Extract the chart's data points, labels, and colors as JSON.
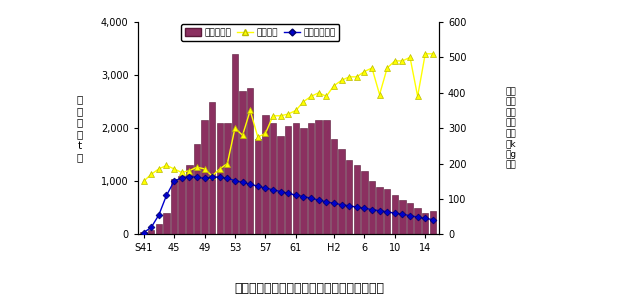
{
  "title": "出雲地域における養殖ワカメ生産量等の推移",
  "bar_color": "#8B3060",
  "bar_edge_color": "#5a1a3a",
  "line1_color": "#FFFF00",
  "line2_color": "#0000CC",
  "ylim_left": [
    0,
    4000
  ],
  "ylim_right": [
    0,
    600
  ],
  "production": [
    50,
    80,
    200,
    400,
    1050,
    1100,
    1300,
    1700,
    2150,
    2500,
    2100,
    2100,
    3400,
    2700,
    2750,
    1800,
    2250,
    2100,
    1850,
    2050,
    2100,
    2000,
    2100,
    2150,
    2150,
    1800,
    1600,
    1400,
    1300,
    1200,
    1000,
    900,
    850,
    750,
    650,
    600,
    500,
    400,
    450
  ],
  "unit_price": [
    150,
    170,
    185,
    195,
    185,
    175,
    180,
    190,
    185,
    165,
    185,
    200,
    300,
    280,
    350,
    275,
    285,
    335,
    335,
    340,
    350,
    375,
    390,
    400,
    390,
    420,
    435,
    445,
    445,
    460,
    470,
    395,
    470,
    490,
    490,
    500,
    390,
    510,
    510
  ],
  "operators": [
    5,
    20,
    55,
    110,
    150,
    160,
    163,
    162,
    158,
    162,
    162,
    158,
    152,
    147,
    142,
    136,
    131,
    126,
    121,
    116,
    111,
    107,
    102,
    97,
    92,
    88,
    84,
    81,
    77,
    74,
    70,
    67,
    64,
    60,
    57,
    53,
    49,
    45,
    42
  ],
  "xlabel_ticks": [
    "S41",
    "45",
    "49",
    "53",
    "57",
    "61",
    "H2",
    "6",
    "10",
    "14"
  ],
  "tick_positions": [
    0,
    4,
    8,
    12,
    16,
    20,
    25,
    29,
    33,
    37
  ],
  "legend_labels": [
    "養殖生産量",
    "養殖単価",
    "養殖経営体数"
  ],
  "left_yticks": [
    0,
    1000,
    2000,
    3000,
    4000
  ],
  "left_yticklabels": [
    "0",
    "1,000",
    "2,000",
    "3,000",
    "4,000"
  ],
  "right_yticks": [
    0,
    100,
    200,
    300,
    400,
    500,
    600
  ],
  "right_yticklabels": [
    "0",
    "100",
    "200",
    "300",
    "400",
    "500",
    "600"
  ]
}
